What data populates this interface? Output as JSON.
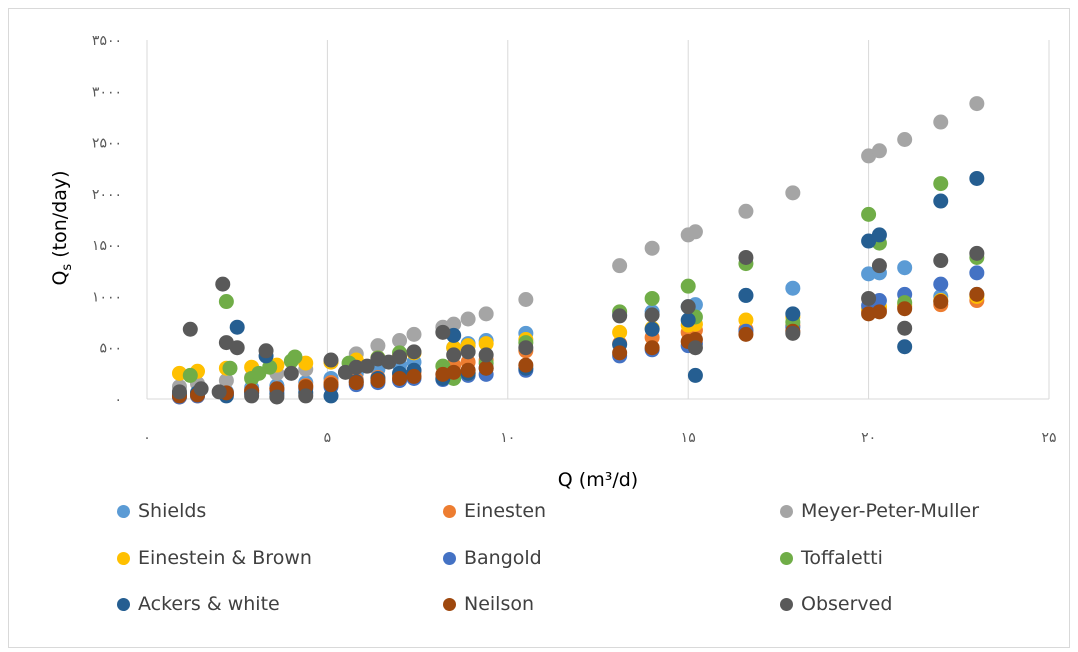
{
  "chart_data": {
    "type": "scatter",
    "xlabel": "Q (m³/d)",
    "ylabel_main": "Q",
    "ylabel_sub": "s",
    "ylabel_rest": " (ton/day)",
    "xlim": [
      0,
      25
    ],
    "ylim": [
      0,
      3500
    ],
    "x_ticks": [
      0,
      5,
      10,
      15,
      20,
      25
    ],
    "x_tick_labels": [
      "۰",
      "۵",
      "۱۰",
      "۱۵",
      "۲۰",
      "۲۵"
    ],
    "y_ticks": [
      0,
      500,
      1000,
      1500,
      2000,
      2500,
      3000,
      3500
    ],
    "y_tick_labels": [
      "۰",
      "۵۰۰",
      "۱۰۰۰",
      "۱۵۰۰",
      "۲۰۰۰",
      "۲۵۰۰",
      "۳۰۰۰",
      "۳۵۰۰"
    ],
    "grid": "vertical",
    "legend_position": "bottom",
    "series": [
      {
        "name": "Shields",
        "color": "#5b9bd5",
        "points": [
          [
            0.9,
            40
          ],
          [
            1.4,
            60
          ],
          [
            2.2,
            70
          ],
          [
            2.9,
            110
          ],
          [
            3.6,
            130
          ],
          [
            4.4,
            160
          ],
          [
            5.1,
            200
          ],
          [
            5.8,
            250
          ],
          [
            6.4,
            290
          ],
          [
            7.0,
            330
          ],
          [
            7.4,
            360
          ],
          [
            8.5,
            500
          ],
          [
            8.9,
            540
          ],
          [
            9.4,
            570
          ],
          [
            10.5,
            640
          ],
          [
            13.1,
            820
          ],
          [
            14.0,
            850
          ],
          [
            15.0,
            900
          ],
          [
            15.2,
            920
          ],
          [
            16.6,
            1010
          ],
          [
            17.9,
            1080
          ],
          [
            20.0,
            1220
          ],
          [
            20.3,
            1230
          ],
          [
            21.0,
            1280
          ],
          [
            22.0,
            1000
          ],
          [
            23.0,
            1020
          ]
        ]
      },
      {
        "name": "Einesten",
        "color": "#ed7d31",
        "points": [
          [
            0.9,
            20
          ],
          [
            1.4,
            30
          ],
          [
            2.2,
            50
          ],
          [
            2.9,
            80
          ],
          [
            3.6,
            100
          ],
          [
            4.4,
            130
          ],
          [
            5.1,
            160
          ],
          [
            5.8,
            190
          ],
          [
            6.4,
            210
          ],
          [
            7.0,
            230
          ],
          [
            7.4,
            260
          ],
          [
            8.5,
            330
          ],
          [
            8.9,
            360
          ],
          [
            9.4,
            380
          ],
          [
            10.5,
            470
          ],
          [
            13.1,
            540
          ],
          [
            14.0,
            600
          ],
          [
            15.0,
            650
          ],
          [
            15.2,
            670
          ],
          [
            16.6,
            680
          ],
          [
            17.9,
            720
          ],
          [
            20.0,
            860
          ],
          [
            20.3,
            880
          ],
          [
            21.0,
            900
          ],
          [
            22.0,
            920
          ],
          [
            23.0,
            960
          ]
        ]
      },
      {
        "name": "Meyer-Peter-Muller",
        "color": "#a5a5a5",
        "points": [
          [
            0.9,
            120
          ],
          [
            1.4,
            150
          ],
          [
            2.2,
            180
          ],
          [
            2.9,
            210
          ],
          [
            3.6,
            250
          ],
          [
            4.4,
            290
          ],
          [
            5.1,
            360
          ],
          [
            5.8,
            440
          ],
          [
            6.4,
            520
          ],
          [
            7.0,
            570
          ],
          [
            7.4,
            630
          ],
          [
            8.2,
            700
          ],
          [
            8.5,
            730
          ],
          [
            8.9,
            780
          ],
          [
            9.4,
            830
          ],
          [
            10.5,
            970
          ],
          [
            13.1,
            1300
          ],
          [
            14.0,
            1470
          ],
          [
            15.0,
            1600
          ],
          [
            15.2,
            1630
          ],
          [
            16.6,
            1830
          ],
          [
            17.9,
            2010
          ],
          [
            20.0,
            2370
          ],
          [
            20.3,
            2420
          ],
          [
            21.0,
            2530
          ],
          [
            22.0,
            2700
          ],
          [
            23.0,
            2880
          ]
        ]
      },
      {
        "name": "Einestein & Brown",
        "color": "#ffc000",
        "points": [
          [
            0.9,
            250
          ],
          [
            1.4,
            270
          ],
          [
            2.2,
            300
          ],
          [
            2.9,
            310
          ],
          [
            3.6,
            330
          ],
          [
            4.4,
            350
          ],
          [
            5.1,
            360
          ],
          [
            5.8,
            380
          ],
          [
            6.4,
            400
          ],
          [
            7.0,
            420
          ],
          [
            7.4,
            450
          ],
          [
            8.5,
            500
          ],
          [
            8.9,
            520
          ],
          [
            9.4,
            540
          ],
          [
            10.5,
            580
          ],
          [
            13.1,
            650
          ],
          [
            14.0,
            690
          ],
          [
            15.0,
            720
          ],
          [
            15.2,
            730
          ],
          [
            16.6,
            770
          ],
          [
            17.9,
            800
          ],
          [
            20.0,
            880
          ],
          [
            20.3,
            900
          ],
          [
            21.0,
            920
          ],
          [
            22.0,
            960
          ],
          [
            23.0,
            1000
          ]
        ]
      },
      {
        "name": "Bangold",
        "color": "#4472c4",
        "points": [
          [
            0.9,
            20
          ],
          [
            1.4,
            30
          ],
          [
            2.2,
            50
          ],
          [
            2.9,
            60
          ],
          [
            3.6,
            80
          ],
          [
            4.4,
            100
          ],
          [
            5.1,
            120
          ],
          [
            5.8,
            140
          ],
          [
            6.4,
            160
          ],
          [
            7.0,
            180
          ],
          [
            7.4,
            200
          ],
          [
            8.2,
            190
          ],
          [
            8.5,
            210
          ],
          [
            8.9,
            230
          ],
          [
            9.4,
            240
          ],
          [
            10.5,
            280
          ],
          [
            13.1,
            420
          ],
          [
            14.0,
            480
          ],
          [
            15.0,
            520
          ],
          [
            15.2,
            540
          ],
          [
            16.6,
            660
          ],
          [
            17.9,
            700
          ],
          [
            20.0,
            910
          ],
          [
            20.3,
            960
          ],
          [
            21.0,
            1020
          ],
          [
            22.0,
            1120
          ],
          [
            23.0,
            1230
          ]
        ]
      },
      {
        "name": "Toffaletti",
        "color": "#70ad47",
        "points": [
          [
            1.2,
            230
          ],
          [
            2.2,
            950
          ],
          [
            2.3,
            300
          ],
          [
            2.9,
            200
          ],
          [
            3.1,
            250
          ],
          [
            3.4,
            310
          ],
          [
            4.0,
            370
          ],
          [
            4.1,
            410
          ],
          [
            5.6,
            350
          ],
          [
            6.4,
            400
          ],
          [
            7.0,
            450
          ],
          [
            8.2,
            320
          ],
          [
            8.5,
            200
          ],
          [
            8.9,
            250
          ],
          [
            9.4,
            350
          ],
          [
            10.5,
            550
          ],
          [
            13.1,
            850
          ],
          [
            14.0,
            980
          ],
          [
            15.0,
            1100
          ],
          [
            15.2,
            800
          ],
          [
            16.6,
            1320
          ],
          [
            17.9,
            750
          ],
          [
            20.0,
            1800
          ],
          [
            20.3,
            1520
          ],
          [
            21.0,
            940
          ],
          [
            22.0,
            2100
          ],
          [
            23.0,
            1380
          ]
        ]
      },
      {
        "name": "Ackers & white",
        "color": "#255e91",
        "points": [
          [
            0.9,
            50
          ],
          [
            1.4,
            60
          ],
          [
            2.2,
            30
          ],
          [
            2.5,
            700
          ],
          [
            2.9,
            60
          ],
          [
            3.3,
            420
          ],
          [
            3.6,
            50
          ],
          [
            4.4,
            60
          ],
          [
            5.1,
            30
          ],
          [
            5.8,
            170
          ],
          [
            6.4,
            200
          ],
          [
            7.0,
            250
          ],
          [
            7.4,
            280
          ],
          [
            8.2,
            200
          ],
          [
            8.5,
            620
          ],
          [
            8.9,
            250
          ],
          [
            9.4,
            300
          ],
          [
            10.5,
            300
          ],
          [
            13.1,
            530
          ],
          [
            14.0,
            680
          ],
          [
            15.0,
            770
          ],
          [
            15.2,
            230
          ],
          [
            16.6,
            1010
          ],
          [
            17.9,
            830
          ],
          [
            20.0,
            1540
          ],
          [
            20.3,
            1600
          ],
          [
            21.0,
            510
          ],
          [
            22.0,
            1930
          ],
          [
            23.0,
            2150
          ]
        ]
      },
      {
        "name": "Neilson",
        "color": "#9e480e",
        "points": [
          [
            0.9,
            30
          ],
          [
            1.4,
            40
          ],
          [
            2.2,
            60
          ],
          [
            2.9,
            80
          ],
          [
            3.6,
            100
          ],
          [
            4.4,
            120
          ],
          [
            5.1,
            140
          ],
          [
            5.8,
            160
          ],
          [
            6.4,
            180
          ],
          [
            7.0,
            200
          ],
          [
            7.4,
            220
          ],
          [
            8.2,
            240
          ],
          [
            8.5,
            260
          ],
          [
            8.9,
            280
          ],
          [
            9.4,
            300
          ],
          [
            10.5,
            330
          ],
          [
            13.1,
            450
          ],
          [
            14.0,
            500
          ],
          [
            15.0,
            560
          ],
          [
            15.2,
            580
          ],
          [
            16.6,
            630
          ],
          [
            17.9,
            660
          ],
          [
            20.0,
            830
          ],
          [
            20.3,
            850
          ],
          [
            21.0,
            880
          ],
          [
            22.0,
            950
          ],
          [
            23.0,
            1020
          ]
        ]
      },
      {
        "name": "Observed",
        "color": "#595959",
        "points": [
          [
            0.9,
            70
          ],
          [
            1.2,
            680
          ],
          [
            1.5,
            100
          ],
          [
            2.0,
            70
          ],
          [
            2.1,
            1120
          ],
          [
            2.2,
            550
          ],
          [
            2.5,
            500
          ],
          [
            2.9,
            30
          ],
          [
            3.3,
            470
          ],
          [
            3.6,
            20
          ],
          [
            4.0,
            250
          ],
          [
            4.4,
            30
          ],
          [
            5.1,
            380
          ],
          [
            5.5,
            260
          ],
          [
            5.8,
            310
          ],
          [
            6.1,
            320
          ],
          [
            6.4,
            390
          ],
          [
            6.7,
            360
          ],
          [
            7.0,
            410
          ],
          [
            7.4,
            460
          ],
          [
            8.2,
            650
          ],
          [
            8.5,
            430
          ],
          [
            8.9,
            460
          ],
          [
            9.4,
            430
          ],
          [
            10.5,
            500
          ],
          [
            13.1,
            810
          ],
          [
            14.0,
            820
          ],
          [
            15.0,
            900
          ],
          [
            15.2,
            500
          ],
          [
            16.6,
            1380
          ],
          [
            17.9,
            640
          ],
          [
            20.0,
            980
          ],
          [
            20.3,
            1300
          ],
          [
            21.0,
            690
          ],
          [
            22.0,
            1350
          ],
          [
            23.0,
            1420
          ]
        ]
      }
    ]
  }
}
